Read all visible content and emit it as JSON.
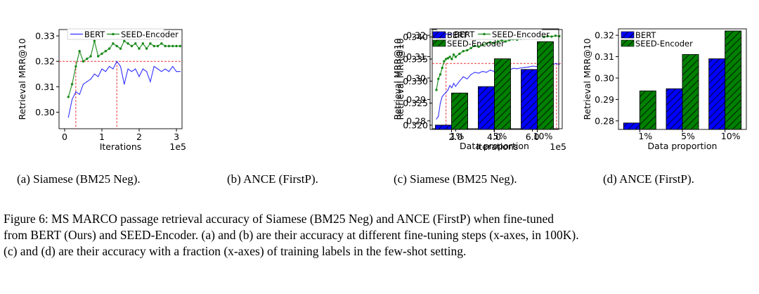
{
  "colors": {
    "bert": "#3333ff",
    "seed": "#1a8a1a",
    "ref": "#e8333a",
    "bar_bert": "#0000ff",
    "bar_seed": "#008000"
  },
  "chart_data": [
    {
      "type": "line",
      "xlabel": "Iterations",
      "ylabel": "Retrieval MRR@10",
      "x_exponent": "1e5",
      "xlim": [
        -0.15,
        3.15
      ],
      "ylim": [
        0.2935,
        0.3325
      ],
      "xticks": [
        0,
        1,
        2,
        3
      ],
      "xtick_labels": [
        "0",
        "1",
        "2",
        "3"
      ],
      "yticks": [
        0.3,
        0.31,
        0.32,
        0.33
      ],
      "ytick_labels": [
        "0.30",
        "0.31",
        "0.32",
        "0.33"
      ],
      "legend": {
        "position": "top",
        "entries": [
          "BERT",
          "SEED-Encoder"
        ]
      },
      "reference": {
        "y": 0.32,
        "x_bert": 1.4,
        "x_seed": 0.3
      },
      "series": [
        {
          "name": "BERT",
          "x": [
            0.1,
            0.2,
            0.3,
            0.4,
            0.5,
            0.6,
            0.7,
            0.8,
            0.9,
            1.0,
            1.1,
            1.2,
            1.3,
            1.4,
            1.5,
            1.6,
            1.7,
            1.8,
            1.9,
            2.0,
            2.1,
            2.2,
            2.3,
            2.4,
            2.5,
            2.6,
            2.7,
            2.8,
            2.9,
            3.0,
            3.1
          ],
          "y": [
            0.298,
            0.305,
            0.308,
            0.307,
            0.311,
            0.312,
            0.313,
            0.315,
            0.314,
            0.317,
            0.316,
            0.318,
            0.317,
            0.32,
            0.318,
            0.311,
            0.317,
            0.316,
            0.317,
            0.314,
            0.317,
            0.316,
            0.312,
            0.318,
            0.317,
            0.316,
            0.317,
            0.316,
            0.318,
            0.316,
            0.316
          ]
        },
        {
          "name": "SEED-Encoder",
          "x": [
            0.1,
            0.2,
            0.3,
            0.4,
            0.5,
            0.6,
            0.7,
            0.8,
            0.9,
            1.0,
            1.1,
            1.2,
            1.3,
            1.4,
            1.5,
            1.6,
            1.7,
            1.8,
            1.9,
            2.0,
            2.1,
            2.2,
            2.3,
            2.4,
            2.5,
            2.6,
            2.7,
            2.8,
            2.9,
            3.0,
            3.1
          ],
          "y": [
            0.306,
            0.311,
            0.318,
            0.324,
            0.32,
            0.321,
            0.322,
            0.328,
            0.322,
            0.323,
            0.324,
            0.325,
            0.327,
            0.326,
            0.325,
            0.328,
            0.327,
            0.326,
            0.327,
            0.325,
            0.327,
            0.325,
            0.327,
            0.326,
            0.326,
            0.327,
            0.326,
            0.326,
            0.326,
            0.326,
            0.326
          ]
        }
      ]
    },
    {
      "type": "line",
      "xlabel": "Iterations",
      "ylabel": "Retrieval MRR@10",
      "x_exponent": "1e5",
      "xlim": [
        0.78,
        7.55
      ],
      "ylim": [
        0.3192,
        0.3417
      ],
      "xticks": [
        2.0,
        4.0,
        6.0
      ],
      "xtick_labels": [
        "2.0",
        "4.0",
        "6.0"
      ],
      "yticks": [
        0.32,
        0.325,
        0.33,
        0.335,
        0.34
      ],
      "ytick_labels": [
        "0.320",
        "0.325",
        "0.330",
        "0.335",
        "0.340"
      ],
      "legend": {
        "position": "top",
        "entries": [
          "BERT",
          "SEED-Encoder"
        ]
      },
      "reference": {
        "y": 0.334,
        "x_bert": 7.25,
        "x_seed": 1.5
      },
      "series": [
        {
          "name": "BERT",
          "x": [
            1.0,
            1.1,
            1.2,
            1.3,
            1.4,
            1.5,
            1.6,
            1.7,
            1.8,
            1.9,
            2.0,
            2.2,
            2.4,
            2.6,
            2.8,
            3.0,
            3.2,
            3.4,
            3.6,
            3.8,
            4.0,
            4.2,
            4.4,
            4.6,
            4.8,
            5.0,
            5.2,
            5.4,
            5.6,
            5.8,
            6.0,
            6.2,
            6.4,
            6.6,
            6.8,
            7.0,
            7.2,
            7.4
          ],
          "y": [
            0.3214,
            0.322,
            0.325,
            0.3265,
            0.327,
            0.3275,
            0.328,
            0.329,
            0.3285,
            0.3295,
            0.3288,
            0.33,
            0.331,
            0.3305,
            0.3315,
            0.332,
            0.3318,
            0.3322,
            0.332,
            0.3325,
            0.3322,
            0.3326,
            0.3324,
            0.3327,
            0.3325,
            0.3329,
            0.3328,
            0.333,
            0.3331,
            0.3332,
            0.3334,
            0.3333,
            0.3336,
            0.3337,
            0.3338,
            0.3336,
            0.334,
            0.3338
          ]
        },
        {
          "name": "SEED-Encoder",
          "x": [
            1.0,
            1.1,
            1.2,
            1.3,
            1.4,
            1.5,
            1.6,
            1.7,
            1.8,
            1.9,
            2.0,
            2.2,
            2.4,
            2.6,
            2.8,
            3.0,
            3.2,
            3.4,
            3.6,
            3.8,
            4.0,
            4.2,
            4.4,
            4.6,
            4.8,
            5.0,
            5.2,
            5.4,
            5.6,
            5.8,
            6.0,
            6.2,
            6.4,
            6.6,
            6.8,
            7.0,
            7.2,
            7.4
          ],
          "y": [
            0.328,
            0.3305,
            0.3315,
            0.333,
            0.3345,
            0.335,
            0.3352,
            0.3355,
            0.335,
            0.336,
            0.3355,
            0.3362,
            0.3368,
            0.337,
            0.3375,
            0.338,
            0.3378,
            0.3382,
            0.3385,
            0.3388,
            0.3386,
            0.339,
            0.3392,
            0.339,
            0.3393,
            0.3395,
            0.3394,
            0.3396,
            0.3397,
            0.3398,
            0.3399,
            0.3398,
            0.3401,
            0.34,
            0.3402,
            0.3401,
            0.3403,
            0.3402
          ]
        }
      ]
    },
    {
      "type": "bar",
      "hatched": true,
      "xlabel": "Data proportion",
      "ylabel": "Retrieval MRR@10",
      "categories": [
        "1%",
        "5%",
        "10%"
      ],
      "ylim": [
        0.276,
        0.323
      ],
      "yticks": [
        0.28,
        0.29,
        0.3,
        0.31,
        0.32
      ],
      "ytick_labels": [
        "0.28",
        "0.29",
        "0.30",
        "0.31",
        "0.32"
      ],
      "legend": {
        "position": "top-left",
        "entries": [
          "BERT",
          "SEED-Encoder"
        ]
      },
      "series": [
        {
          "name": "BERT",
          "values": [
            0.278,
            0.296,
            0.304
          ]
        },
        {
          "name": "SEED-Encoder",
          "values": [
            0.293,
            0.309,
            0.317
          ]
        }
      ]
    },
    {
      "type": "bar",
      "hatched": true,
      "xlabel": "Data proportion",
      "ylabel": "Retrieval MRR@10",
      "categories": [
        "1%",
        "5%",
        "10%"
      ],
      "ylim": [
        0.276,
        0.323
      ],
      "yticks": [
        0.28,
        0.29,
        0.3,
        0.31,
        0.32
      ],
      "ytick_labels": [
        "0.28",
        "0.29",
        "0.30",
        "0.31",
        "0.32"
      ],
      "legend": {
        "position": "top-left",
        "entries": [
          "BERT",
          "SEED-Encoder"
        ]
      },
      "series": [
        {
          "name": "BERT",
          "values": [
            0.279,
            0.295,
            0.309
          ]
        },
        {
          "name": "SEED-Encoder",
          "values": [
            0.294,
            0.311,
            0.322
          ]
        }
      ]
    }
  ],
  "subcaptions": [
    "(a)  Siamese (BM25 Neg).",
    "(b)  ANCE (FirstP).",
    "(c)  Siamese (BM25 Neg).",
    "(d)  ANCE (FirstP)."
  ],
  "caption": [
    "Figure 6: MS MARCO passage retrieval accuracy of Siamese (BM25 Neg) and ANCE (FirstP) when fine-tuned",
    "from BERT (Ours) and SEED-Encoder. (a) and (b) are their accuracy at different fine-tuning steps (x-axes, in 100K).",
    "(c) and (d) are their accuracy with a fraction (x-axes) of training labels in the few-shot setting."
  ]
}
